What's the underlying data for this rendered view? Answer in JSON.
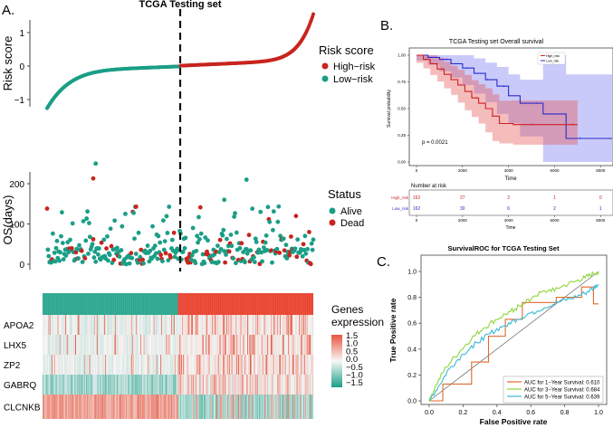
{
  "panel_labels": {
    "a": "A.",
    "b": "B.",
    "c": "C."
  },
  "panel_a": {
    "title": "TCGA Testing set",
    "risk_ylabel": "Risk score",
    "os_ylabel": "OS(days)",
    "risk_legend": {
      "title": "Risk score",
      "high": "High−risk",
      "low": "Low−risk"
    },
    "status_legend": {
      "title": "Status",
      "alive": "Alive",
      "dead": "Dead"
    },
    "heat_legend": {
      "title1": "Genes",
      "title2": "expression",
      "ticks": [
        "1.5",
        "1.0",
        "0.5",
        "0.0",
        "−0.5",
        "−1.0",
        "−1.5"
      ]
    },
    "genes": [
      "APOA2",
      "LHX5",
      "ZP2",
      "GABRQ",
      "CLCNKB"
    ]
  },
  "panel_b": {
    "title": "TCGA Testing set Overall survival",
    "ylabel": "Survival probability",
    "xlabel": "Time",
    "pvalue": "p = 0.0021",
    "legend_high": "High_risk",
    "legend_low": "Low_risk",
    "xticks": [
      "0",
      "2000",
      "4000",
      "6000",
      "8000"
    ],
    "yticks": [
      "0.00",
      "0.25",
      "0.50",
      "0.75",
      "1.00"
    ],
    "risk_title": "Number at risk",
    "risk_high_label": "High_risk",
    "risk_low_label": "Low_risk",
    "risk_high": [
      "162",
      "27",
      "2",
      "1",
      "0"
    ],
    "risk_low": [
      "162",
      "30",
      "6",
      "2",
      "1"
    ],
    "risk_xticks": [
      "0",
      "2000",
      "4000",
      "6000",
      "8000"
    ],
    "risk_xlabel": "Time"
  },
  "panel_c": {
    "title": "SurvivalROC for TCGA Testing Set",
    "xlabel": "False Positive rate",
    "ylabel": "True Positive rate",
    "ticks": [
      "0.0",
      "0.2",
      "0.4",
      "0.6",
      "0.8",
      "1.0"
    ],
    "legend": [
      "AUC for 1−Year Survival: 0.610",
      "AUC for 3−Year Survival: 0.684",
      "AUC for 5−Year Survival: 0.639"
    ]
  },
  "colors": {
    "high": "#c8241f",
    "low": "#1a9e86",
    "dead": "#c8241f",
    "alive": "#1a9e86",
    "km_high": "#cc2222",
    "km_low": "#2a2acc",
    "roc1": "#e06a2c",
    "roc3": "#8fd63b",
    "roc5": "#3cb8d8"
  },
  "chart_data": [
    {
      "type": "scatter",
      "name": "risk score curve",
      "n_samples": 324,
      "split_index": 162,
      "ylim": [
        -1.2,
        1.6
      ],
      "yticks": [
        -1,
        0,
        1
      ],
      "low_risk_range": [
        -1.1,
        -0.01
      ],
      "high_risk_range": [
        0.01,
        1.55
      ]
    },
    {
      "type": "scatter",
      "name": "OS(days) by sample",
      "ylim": [
        -10,
        280
      ],
      "yticks": [
        0,
        100,
        200
      ],
      "outliers": [
        {
          "x": 55,
          "y": 250,
          "status": "alive"
        },
        {
          "x": 52,
          "y": 213,
          "status": "dead"
        },
        {
          "x": 225,
          "y": 210,
          "status": "alive"
        },
        {
          "x": 200,
          "y": 160,
          "status": "alive"
        },
        {
          "x": 100,
          "y": 143,
          "status": "dead"
        }
      ]
    },
    {
      "type": "heatmap",
      "rows": [
        "APOA2",
        "LHX5",
        "ZP2",
        "GABRQ",
        "CLCNKB"
      ],
      "columns": 324,
      "range": [
        -1.5,
        1.5
      ]
    },
    {
      "type": "line",
      "name": "Kaplan-Meier overall survival",
      "xlim": [
        0,
        8500
      ],
      "ylim": [
        0,
        1
      ],
      "series": [
        {
          "name": "High_risk",
          "x": [
            0,
            300,
            600,
            900,
            1200,
            1500,
            1800,
            2100,
            2400,
            2700,
            3000,
            3300,
            3600,
            4200,
            7000
          ],
          "y": [
            1.0,
            0.96,
            0.92,
            0.87,
            0.82,
            0.77,
            0.72,
            0.66,
            0.6,
            0.55,
            0.5,
            0.43,
            0.36,
            0.35,
            0.35
          ]
        },
        {
          "name": "Low_risk",
          "x": [
            0,
            500,
            1000,
            1500,
            2000,
            2500,
            3000,
            3500,
            4000,
            4500,
            5500,
            6500,
            8500
          ],
          "y": [
            1.0,
            0.98,
            0.96,
            0.92,
            0.88,
            0.83,
            0.77,
            0.71,
            0.62,
            0.55,
            0.45,
            0.22,
            0.22
          ]
        }
      ]
    },
    {
      "type": "line",
      "name": "SurvivalROC",
      "xlim": [
        0,
        1
      ],
      "ylim": [
        0,
        1
      ],
      "series": [
        {
          "name": "AUC for 1-Year Survival: 0.610",
          "x": [
            0,
            0.08,
            0.08,
            0.25,
            0.25,
            0.35,
            0.35,
            0.45,
            0.45,
            0.55,
            0.55,
            0.75,
            0.75,
            0.9,
            0.9,
            0.97,
            0.97,
            1.0
          ],
          "y": [
            0,
            0,
            0.13,
            0.13,
            0.3,
            0.3,
            0.5,
            0.5,
            0.63,
            0.63,
            0.76,
            0.76,
            0.8,
            0.8,
            0.88,
            0.88,
            0.75,
            0.75
          ]
        },
        {
          "name": "AUC for 3-Year Survival: 0.684",
          "x": [
            0,
            0.04,
            0.1,
            0.18,
            0.25,
            0.32,
            0.4,
            0.48,
            0.55,
            0.62,
            0.7,
            0.78,
            0.86,
            0.92,
            0.97,
            1.0
          ],
          "y": [
            0,
            0.12,
            0.26,
            0.38,
            0.48,
            0.56,
            0.63,
            0.69,
            0.75,
            0.81,
            0.85,
            0.88,
            0.92,
            0.95,
            0.98,
            1.0
          ]
        },
        {
          "name": "AUC for 5-Year Survival: 0.639",
          "x": [
            0,
            0.06,
            0.12,
            0.2,
            0.28,
            0.36,
            0.44,
            0.52,
            0.6,
            0.68,
            0.76,
            0.84,
            0.92,
            0.97,
            1.0
          ],
          "y": [
            0,
            0.12,
            0.25,
            0.36,
            0.45,
            0.52,
            0.58,
            0.63,
            0.68,
            0.72,
            0.76,
            0.79,
            0.83,
            0.87,
            0.9
          ]
        }
      ]
    }
  ]
}
